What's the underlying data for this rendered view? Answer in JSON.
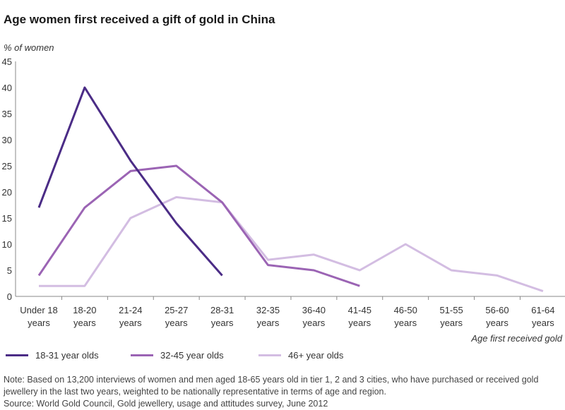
{
  "title": "Age women first received a gift of gold in China",
  "note": "Note: Based on 13,200 interviews of women and men aged 18-65 years old in tier 1, 2 and 3 cities, who have purchased or received gold jewellery in the last two years, weighted to be nationally representative in terms of age and region.",
  "source": "Source: World Gold Council, Gold jewellery, usage and attitudes survey, June 2012",
  "chart_data": {
    "type": "line",
    "title": "Age women first received a gift of gold in China",
    "ylabel": "% of women",
    "xlabel": "Age first received gold",
    "ylim": [
      0,
      45
    ],
    "yticks": [
      "0",
      "5",
      "10",
      "15",
      "20",
      "25",
      "30",
      "35",
      "40",
      "45"
    ],
    "grid": false,
    "legend_position": "bottom-left",
    "categories": [
      [
        "Under 18",
        "years"
      ],
      [
        "18-20",
        "years"
      ],
      [
        "21-24",
        "years"
      ],
      [
        "25-27",
        "years"
      ],
      [
        "28-31",
        "years"
      ],
      [
        "32-35",
        "years"
      ],
      [
        "36-40",
        "years"
      ],
      [
        "41-45",
        "years"
      ],
      [
        "46-50",
        "years"
      ],
      [
        "51-55",
        "years"
      ],
      [
        "56-60",
        "years"
      ],
      [
        "61-64",
        "years"
      ]
    ],
    "series": [
      {
        "name": "18-31 year olds",
        "color": "#4b2c86",
        "values": [
          17,
          40,
          26,
          14,
          4,
          null,
          null,
          null,
          null,
          null,
          null,
          null
        ]
      },
      {
        "name": "32-45 year olds",
        "color": "#9b64b4",
        "values": [
          4,
          17,
          24,
          25,
          18,
          6,
          5,
          2,
          null,
          null,
          null,
          null
        ]
      },
      {
        "name": "46+ year olds",
        "color": "#d3bde2",
        "values": [
          2,
          2,
          15,
          19,
          18,
          7,
          8,
          5,
          10,
          5,
          4,
          1
        ]
      }
    ]
  }
}
